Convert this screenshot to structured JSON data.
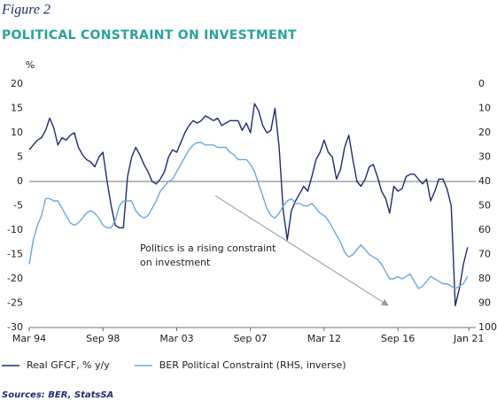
{
  "chart_data": {
    "type": "line",
    "figure_label": "Figure 2",
    "title": "POLITICAL CONSTRAINT ON INVESTMENT",
    "y_unit": "%",
    "source": "Sources: BER, StatsSA",
    "annotation": [
      "Politics is a rising constraint",
      "on investment"
    ],
    "x": [
      1994,
      1994.25,
      1994.5,
      1994.75,
      1995,
      1995.25,
      1995.5,
      1995.75,
      1996,
      1996.25,
      1996.5,
      1996.75,
      1997,
      1997.25,
      1997.5,
      1997.75,
      1998,
      1998.25,
      1998.5,
      1998.75,
      1999,
      1999.25,
      1999.5,
      1999.75,
      2000,
      2000.25,
      2000.5,
      2000.75,
      2001,
      2001.25,
      2001.5,
      2001.75,
      2002,
      2002.25,
      2002.5,
      2002.75,
      2003,
      2003.25,
      2003.5,
      2003.75,
      2004,
      2004.25,
      2004.5,
      2004.75,
      2005,
      2005.25,
      2005.5,
      2005.75,
      2006,
      2006.25,
      2006.5,
      2006.75,
      2007,
      2007.25,
      2007.5,
      2007.75,
      2008,
      2008.25,
      2008.5,
      2008.75,
      2009,
      2009.25,
      2009.5,
      2009.75,
      2010,
      2010.25,
      2010.5,
      2010.75,
      2011,
      2011.25,
      2011.5,
      2011.75,
      2012,
      2012.25,
      2012.5,
      2012.75,
      2013,
      2013.25,
      2013.5,
      2013.75,
      2014,
      2014.25,
      2014.5,
      2014.75,
      2015,
      2015.25,
      2015.5,
      2015.75,
      2016,
      2016.25,
      2016.5,
      2016.75,
      2017,
      2017.25,
      2017.5,
      2017.75,
      2018,
      2018.25,
      2018.5,
      2018.75,
      2019,
      2019.25,
      2019.5,
      2019.75,
      2020,
      2020.25,
      2020.5,
      2020.75
    ],
    "xlim": [
      1994,
      2021.25
    ],
    "xticks": [
      {
        "value": 1994,
        "label": "Mar 94"
      },
      {
        "value": 1998.5,
        "label": "Sep 98"
      },
      {
        "value": 2003,
        "label": "Mar 03"
      },
      {
        "value": 2007.5,
        "label": "Sep 07"
      },
      {
        "value": 2012,
        "label": "Mar 12"
      },
      {
        "value": 2016.5,
        "label": "Sep 16"
      },
      {
        "value": 2020.83,
        "label": "Jan 21"
      }
    ],
    "ylim": [
      -30,
      20
    ],
    "yticks": [
      20,
      15,
      10,
      5,
      0,
      -5,
      -10,
      -15,
      -20,
      -25,
      -30
    ],
    "y2lim": [
      100,
      0
    ],
    "y2ticks": [
      0,
      10,
      20,
      30,
      40,
      50,
      60,
      70,
      80,
      90,
      100
    ],
    "zero_line": true,
    "legend": "bottom",
    "series": [
      {
        "name": "Real GFCF, % y/y",
        "color": "#1f2d6e",
        "values": [
          6.5,
          7.5,
          8.5,
          9,
          10.5,
          13,
          11,
          7.5,
          9,
          8.5,
          9.5,
          10,
          7,
          5.5,
          4.5,
          4,
          3,
          5,
          6,
          0,
          -5,
          -9,
          -9.5,
          -9.5,
          1,
          5,
          7,
          5.5,
          3.5,
          2,
          0,
          -0.5,
          0.5,
          2,
          5,
          6.5,
          6,
          8,
          10,
          11.5,
          12.5,
          12,
          12.5,
          13.5,
          13,
          12.5,
          13,
          11.5,
          12,
          12.5,
          12.5,
          12.5,
          10.5,
          12,
          10,
          16,
          14.5,
          11.5,
          10,
          10.5,
          15,
          7,
          -6,
          -12,
          -6,
          -4,
          -2.5,
          -1,
          -2,
          1,
          4.5,
          6,
          8.5,
          6,
          5,
          0.5,
          2.5,
          7,
          9.5,
          4.5,
          0,
          -1,
          0.5,
          3,
          3.5,
          1,
          -2,
          -3.5,
          -6.5,
          -1,
          -2,
          -1.5,
          1,
          1.5,
          1.5,
          0.5,
          -0.5,
          0.5,
          -4,
          -2,
          0.5,
          0.5,
          -1.5,
          -5,
          -25.5,
          -22,
          -17,
          -13.5
        ]
      },
      {
        "name": "BER Political Constraint (RHS, inverse)",
        "color": "#6fa8d6",
        "axis": "y2",
        "values": [
          74,
          64,
          58,
          54,
          47,
          47,
          48,
          48,
          51,
          54,
          57,
          58,
          57,
          55,
          53,
          52,
          53,
          55,
          58,
          59,
          59,
          56,
          50,
          48,
          48,
          48,
          52,
          54,
          55,
          54,
          51,
          48,
          44,
          42,
          40,
          39,
          36,
          33,
          30,
          27,
          25,
          24,
          24,
          25,
          25,
          25,
          26,
          26,
          26,
          28,
          29,
          31,
          31,
          31,
          33,
          36,
          41,
          46,
          51,
          54,
          55,
          53,
          50,
          48,
          47,
          49,
          49,
          50,
          50,
          49,
          51,
          53,
          54,
          56,
          59,
          62,
          65,
          69,
          71,
          70,
          68,
          66,
          68,
          70,
          71,
          72,
          74,
          77,
          80,
          80,
          79,
          80,
          79,
          78,
          81,
          84,
          83,
          81,
          79,
          80,
          81,
          82,
          82,
          83,
          84,
          83,
          82,
          79
        ]
      }
    ]
  }
}
